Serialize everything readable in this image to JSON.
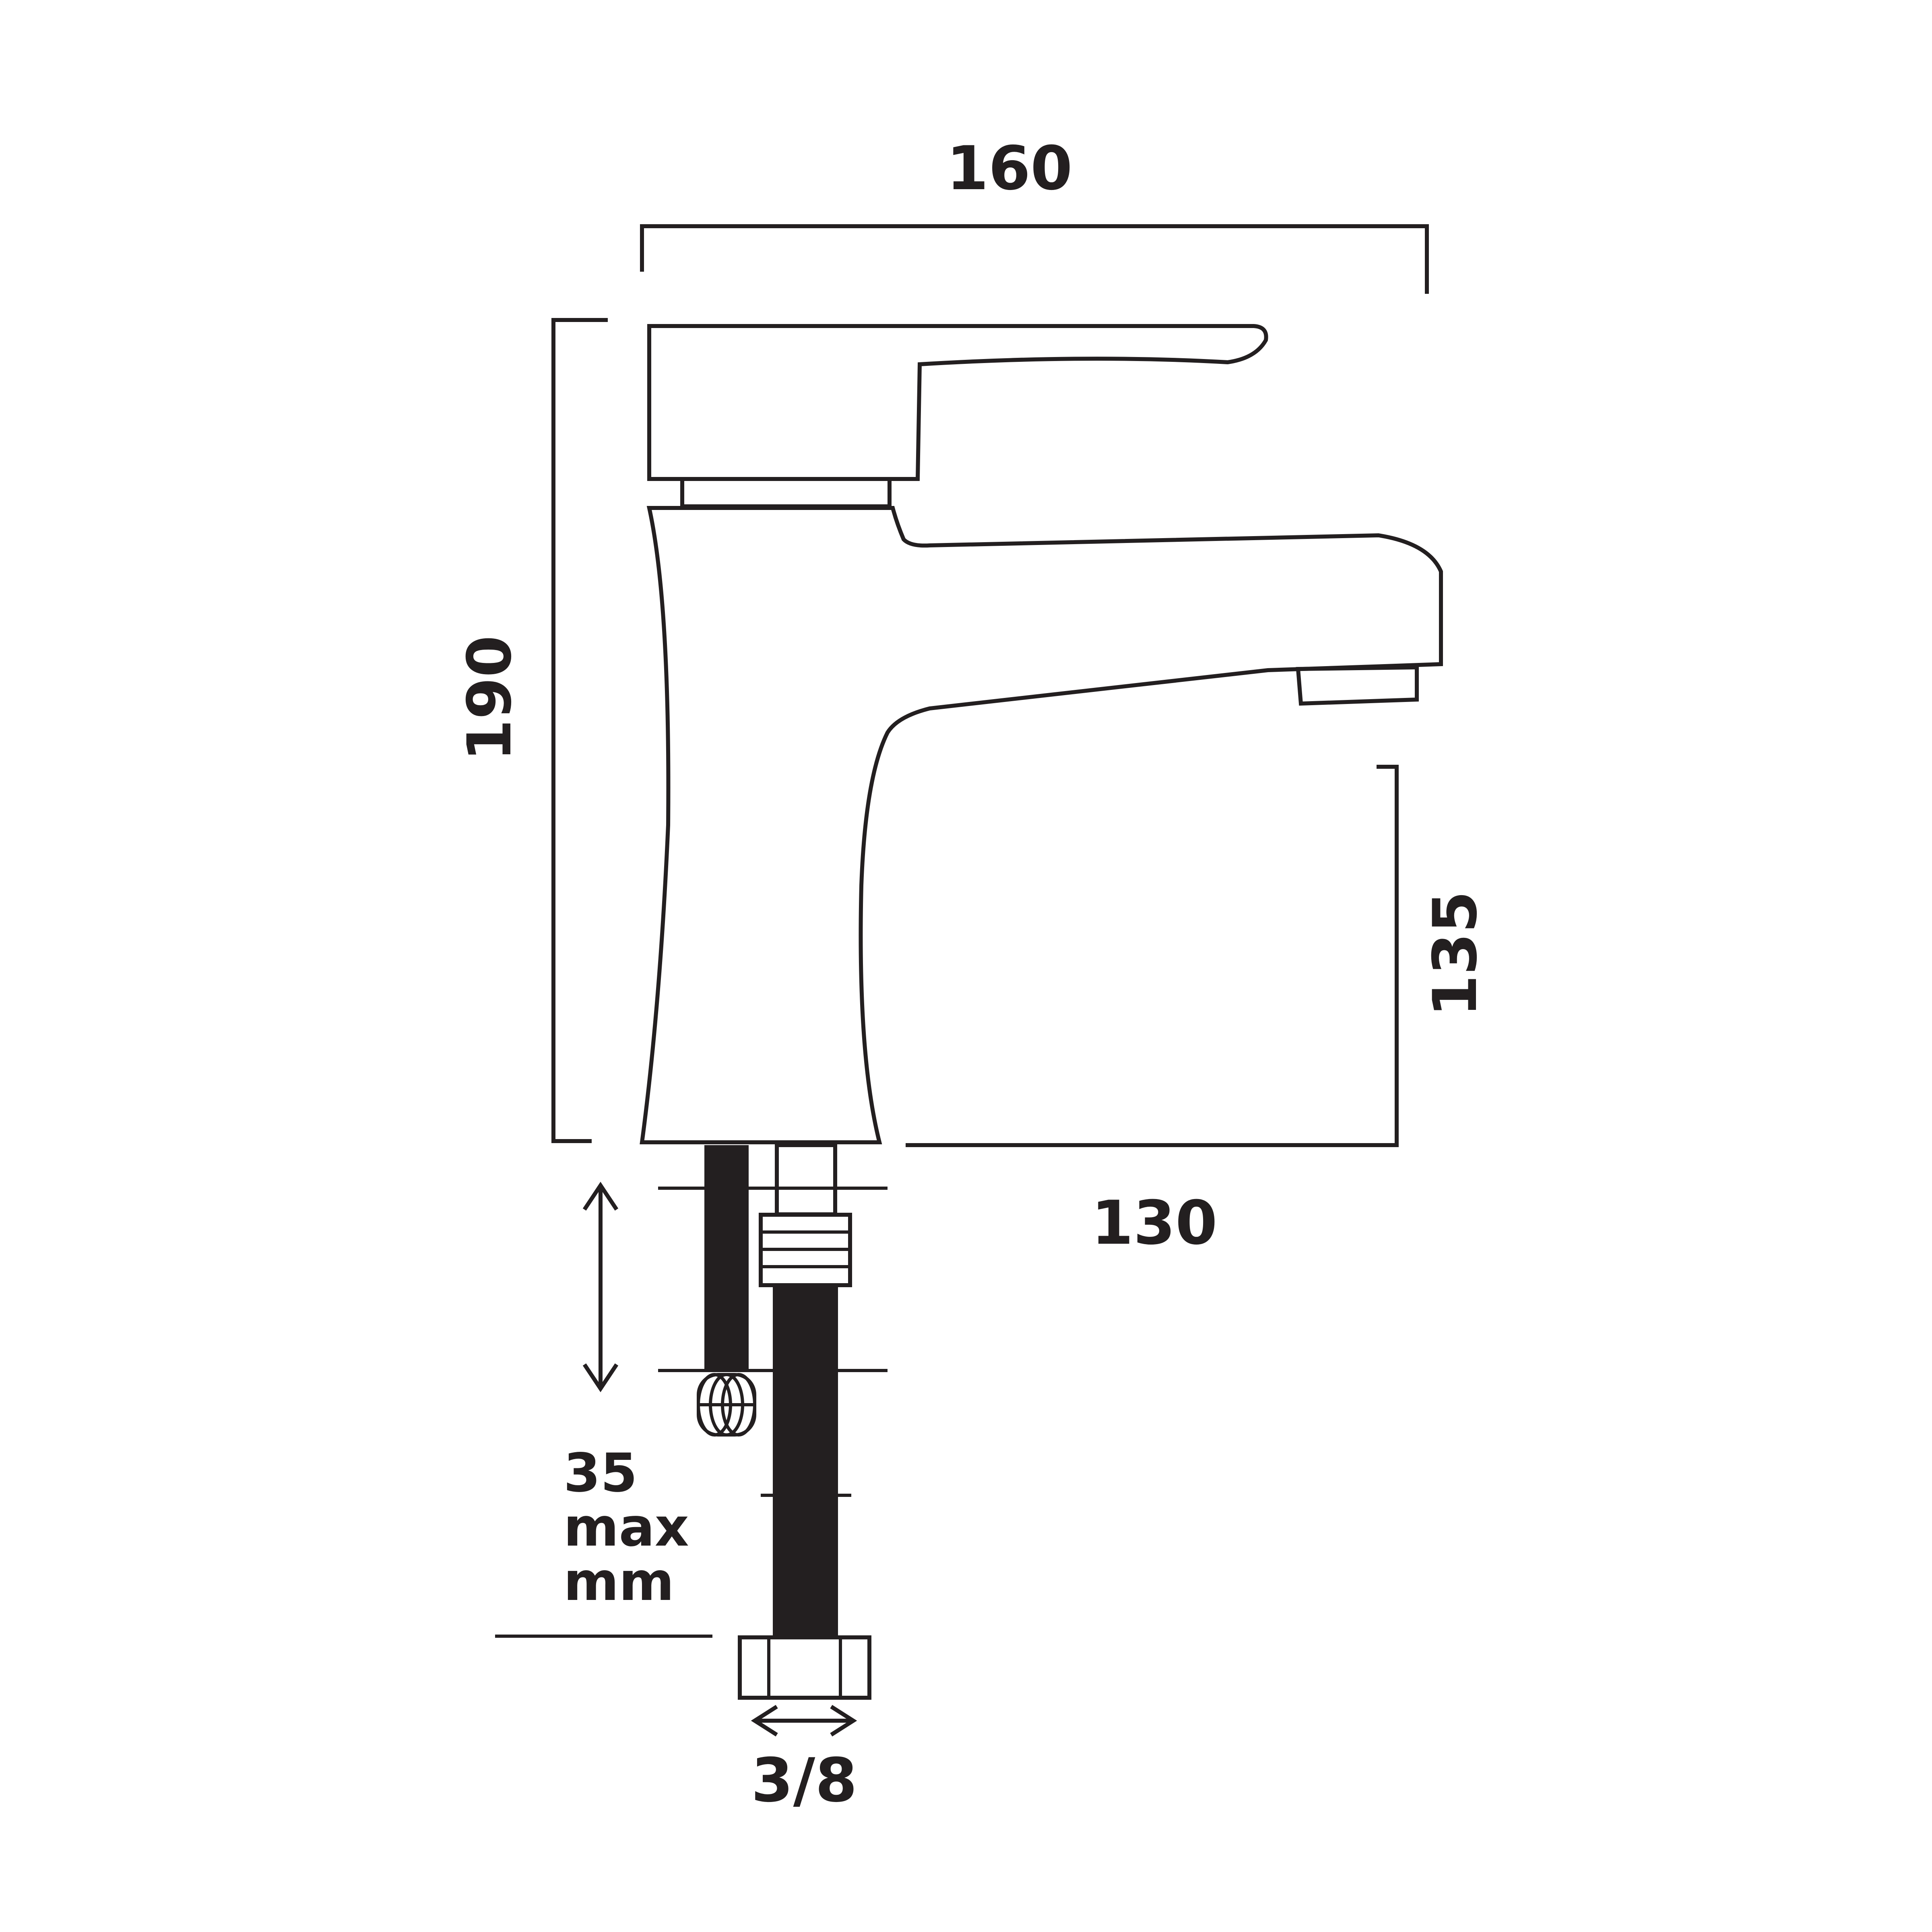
{
  "dimensions": {
    "width": "160",
    "height": "190",
    "spout_height": "135",
    "spout_reach": "130",
    "max_thickness": "35",
    "max_thickness_unit_line1": "max",
    "max_thickness_unit_line2": "mm",
    "connection": "3/8"
  },
  "line_color": "#231f20",
  "background_color": "#ffffff"
}
